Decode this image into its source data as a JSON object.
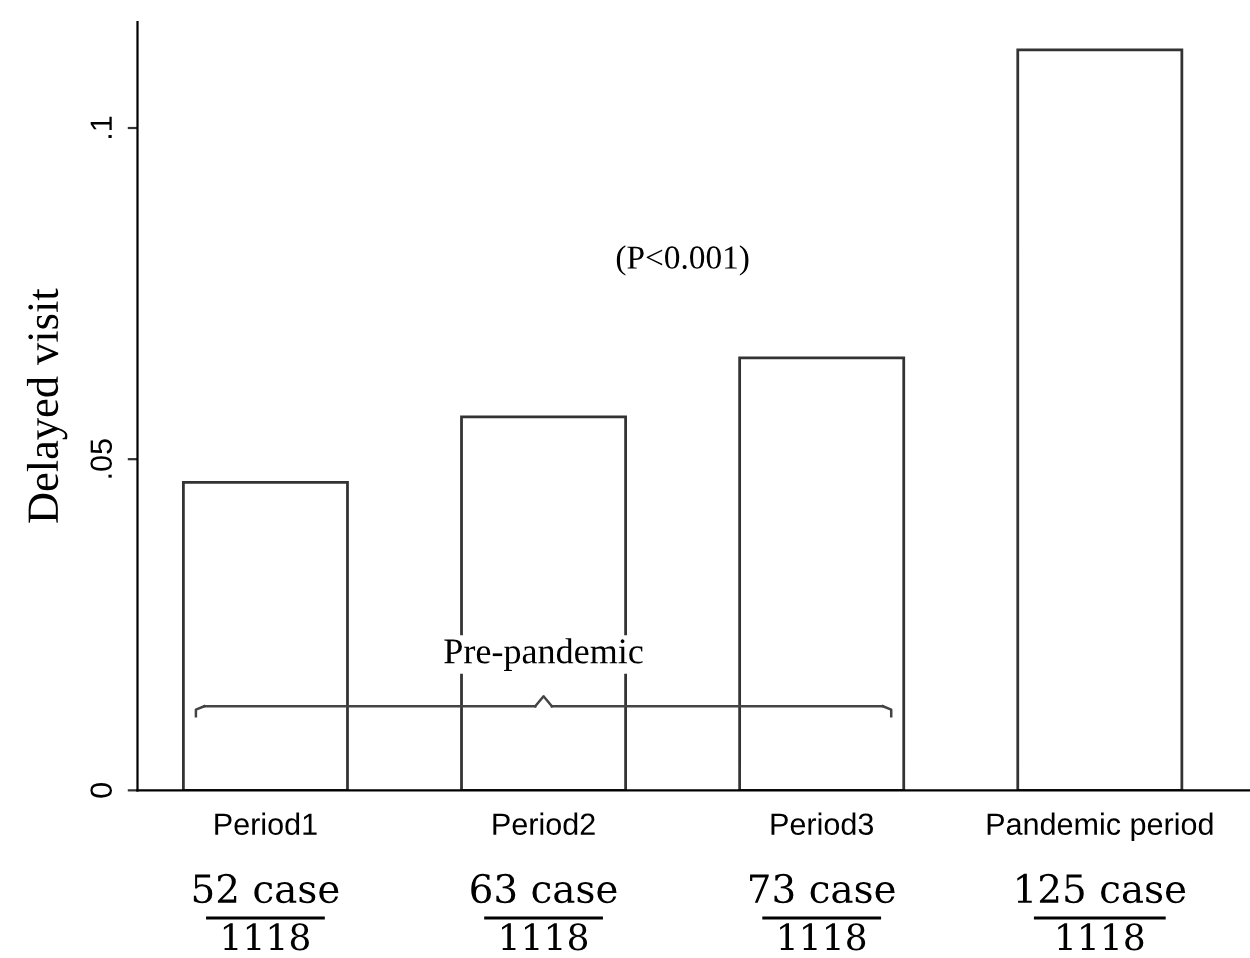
{
  "chart_data": {
    "type": "bar",
    "ylabel": "Delayed visit",
    "categories": [
      "Period1",
      "Period2",
      "Period3",
      "Pandemic period"
    ],
    "values": [
      0.0465,
      0.0564,
      0.0653,
      0.1118
    ],
    "color": "#ffffff",
    "ylim": [
      0,
      0.116
    ],
    "yticks": [
      {
        "value": 0,
        "label": "0"
      },
      {
        "value": 0.05,
        "label": ".05"
      },
      {
        "value": 0.1,
        "label": ".1"
      }
    ],
    "grid": false,
    "legend": false,
    "annotations": [
      "(P<0.001)",
      "Pre-pandemic",
      "52 case",
      "1118",
      "63 case",
      "1118",
      "73 case",
      "1118",
      "125 case",
      "1118"
    ]
  }
}
